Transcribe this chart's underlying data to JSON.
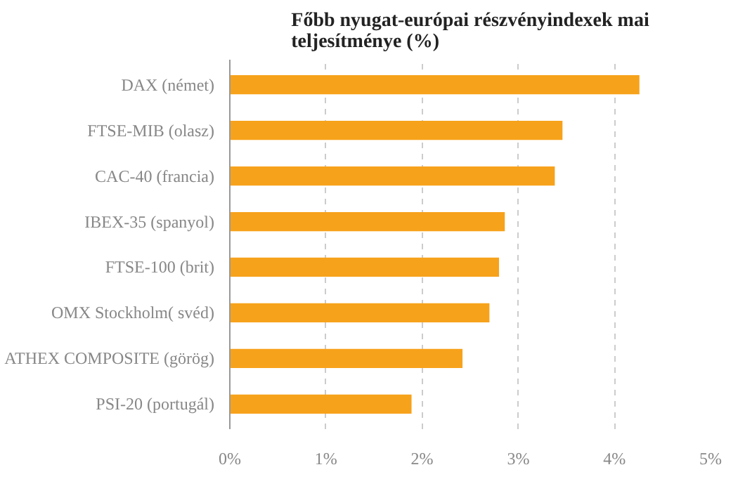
{
  "chart_data": {
    "type": "bar",
    "orientation": "horizontal",
    "title": "Főbb nyugat-európai részvényindexek mai\nteljesítménye (%)",
    "categories": [
      "DAX (német)",
      "FTSE-MIB (olasz)",
      "CAC-40 (francia)",
      "IBEX-35 (spanyol)",
      "FTSE-100 (brit)",
      "OMX Stockholm( svéd)",
      "ATHEX COMPOSITE (görög)",
      "PSI-20 (portugál)"
    ],
    "values": [
      4.26,
      3.46,
      3.38,
      2.86,
      2.8,
      2.7,
      2.42,
      1.89
    ],
    "color": "#f7a21b",
    "xlim": [
      0,
      5
    ],
    "xticks": [
      {
        "value": 0,
        "label": "0%"
      },
      {
        "value": 1,
        "label": "1%"
      },
      {
        "value": 2,
        "label": "2%"
      },
      {
        "value": 3,
        "label": "3%"
      },
      {
        "value": 4,
        "label": "4%"
      },
      {
        "value": 5,
        "label": "5%"
      }
    ],
    "grid": "x"
  }
}
